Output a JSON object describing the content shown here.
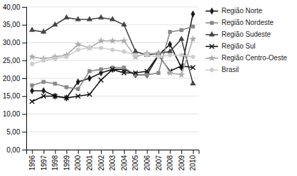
{
  "chart_data": {
    "type": "line",
    "x": [
      1996,
      1997,
      1998,
      1999,
      2000,
      2001,
      2002,
      2003,
      2004,
      2005,
      2006,
      2007,
      2008,
      2009,
      2010
    ],
    "xlim": [
      1995.5,
      2010.5
    ],
    "xticks": [
      1996,
      1997,
      1998,
      1999,
      2000,
      2001,
      2002,
      2003,
      2004,
      2005,
      2006,
      2007,
      2008,
      2009,
      2010
    ],
    "ylim": [
      0,
      40
    ],
    "yticks": [
      {
        "value": 0,
        "label": "0,00"
      },
      {
        "value": 5,
        "label": "5,00"
      },
      {
        "value": 10,
        "label": "10,00"
      },
      {
        "value": 15,
        "label": "15,00"
      },
      {
        "value": 20,
        "label": "20,00"
      },
      {
        "value": 25,
        "label": "25,00"
      },
      {
        "value": 30,
        "label": "30,00"
      },
      {
        "value": 35,
        "label": "35,00"
      },
      {
        "value": 40,
        "label": "40,00"
      }
    ],
    "grid": true,
    "legend": "right",
    "series": [
      {
        "name": "Região Norte",
        "color": "#1a1a1a",
        "marker": "diamond",
        "values": [
          16.5,
          16.5,
          15.0,
          14.5,
          19.0,
          20.0,
          21.5,
          22.5,
          22.5,
          21.0,
          21.0,
          26.5,
          29.5,
          23.0,
          38.0
        ]
      },
      {
        "name": "Região Nordeste",
        "color": "#888888",
        "marker": "square",
        "values": [
          18.0,
          19.0,
          18.5,
          17.5,
          17.0,
          22.0,
          22.5,
          23.0,
          23.0,
          21.0,
          21.0,
          21.5,
          33.0,
          33.5,
          34.5
        ]
      },
      {
        "name": "Região Sudeste",
        "color": "#444444",
        "marker": "triangle",
        "values": [
          33.5,
          33.0,
          35.0,
          37.0,
          36.5,
          36.5,
          37.0,
          36.5,
          35.0,
          27.5,
          26.5,
          27.0,
          27.5,
          31.0,
          18.5
        ]
      },
      {
        "name": "Região Sul",
        "color": "#111111",
        "marker": "x",
        "values": [
          13.5,
          15.0,
          15.0,
          14.5,
          15.0,
          15.5,
          19.5,
          22.5,
          21.5,
          21.5,
          22.0,
          26.5,
          22.0,
          23.5,
          23.0
        ]
      },
      {
        "name": "Região Centro-Oeste",
        "color": "#aaaaaa",
        "marker": "star",
        "values": [
          26.0,
          25.5,
          26.0,
          26.5,
          29.5,
          28.5,
          30.5,
          30.5,
          30.5,
          26.0,
          27.0,
          27.0,
          21.5,
          21.0,
          31.0
        ]
      },
      {
        "name": "Brasil",
        "color": "#cccccc",
        "marker": "circle",
        "values": [
          24.0,
          25.0,
          25.5,
          26.0,
          28.0,
          28.5,
          28.5,
          28.0,
          27.5,
          26.5,
          26.5,
          26.0,
          26.5,
          26.5,
          26.0
        ]
      }
    ]
  }
}
